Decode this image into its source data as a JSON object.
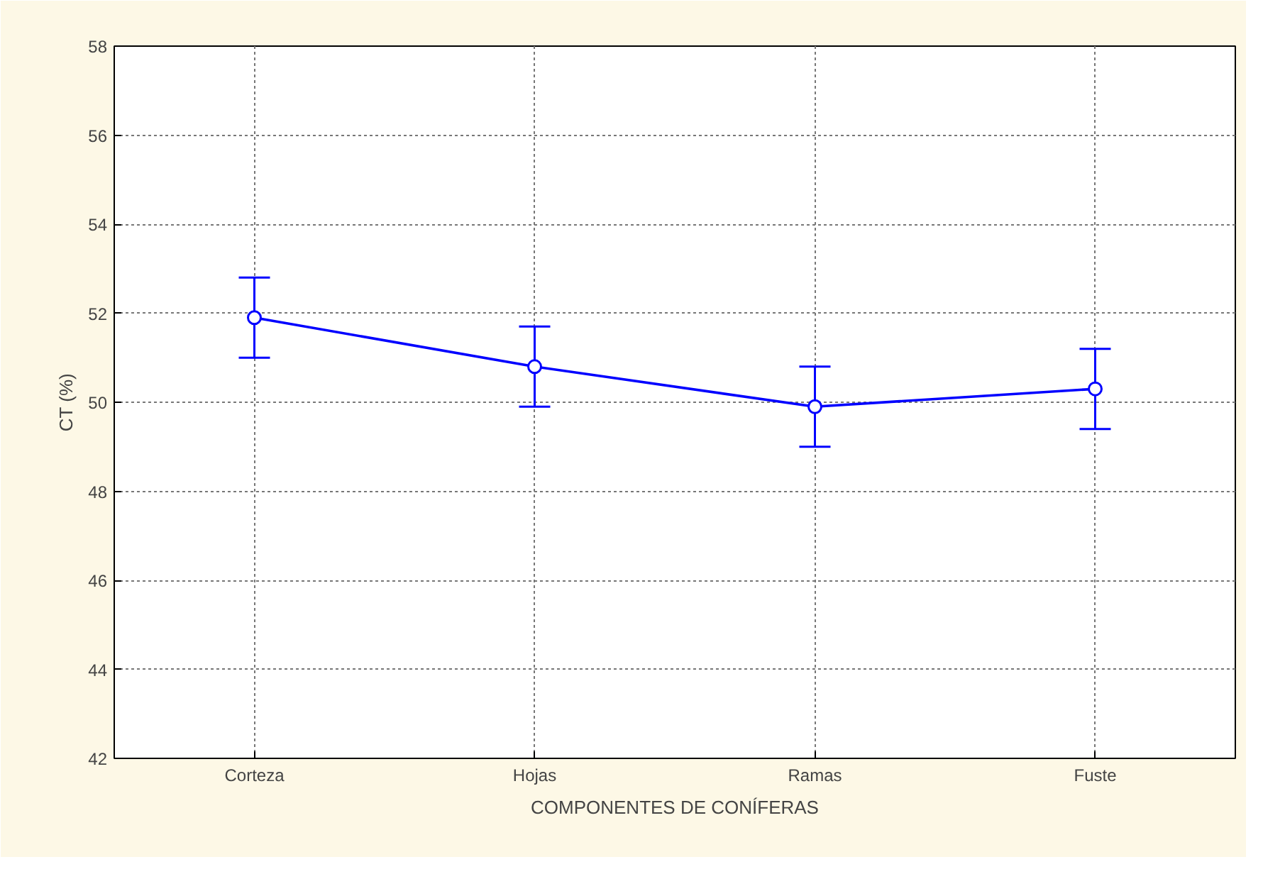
{
  "chart_data": {
    "type": "line",
    "xlabel": "COMPONENTES DE CONÍFERAS",
    "ylabel": "CT (%)",
    "categories": [
      "Corteza",
      "Hojas",
      "Ramas",
      "Fuste"
    ],
    "series": [
      {
        "color": "#0000ff",
        "values": [
          51.9,
          50.8,
          49.9,
          50.3
        ],
        "errors": [
          0.9,
          0.9,
          0.9,
          0.9
        ]
      }
    ],
    "ylim": [
      42,
      58
    ],
    "yticks": [
      42,
      44,
      46,
      48,
      50,
      52,
      54,
      56,
      58
    ],
    "grid": true,
    "marker": "circle",
    "line_style": "solid"
  }
}
